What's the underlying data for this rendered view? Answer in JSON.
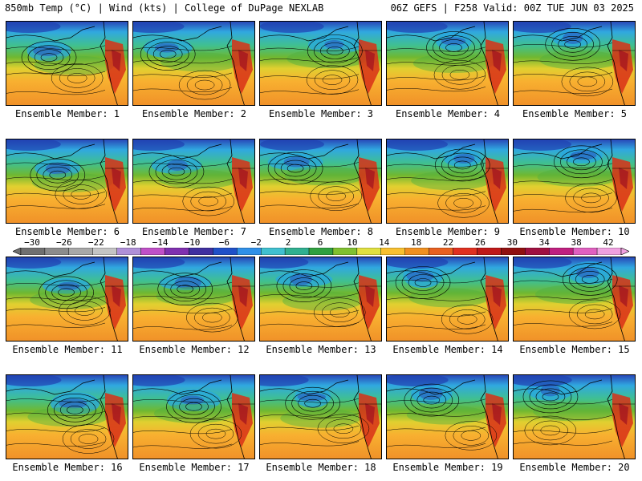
{
  "header": {
    "left": "850mb Temp (°C) | Wind (kts) | College of DuPage NEXLAB",
    "right": "06Z GEFS | F258 Valid: 00Z TUE JUN 03 2025"
  },
  "panels": [
    {
      "label": "Ensemble Member: 1"
    },
    {
      "label": "Ensemble Member: 2"
    },
    {
      "label": "Ensemble Member: 3"
    },
    {
      "label": "Ensemble Member: 4"
    },
    {
      "label": "Ensemble Member: 5"
    },
    {
      "label": "Ensemble Member: 6"
    },
    {
      "label": "Ensemble Member: 7"
    },
    {
      "label": "Ensemble Member: 8"
    },
    {
      "label": "Ensemble Member: 9"
    },
    {
      "label": "Ensemble Member: 10"
    },
    {
      "label": "Ensemble Member: 11"
    },
    {
      "label": "Ensemble Member: 12"
    },
    {
      "label": "Ensemble Member: 13"
    },
    {
      "label": "Ensemble Member: 14"
    },
    {
      "label": "Ensemble Member: 15"
    },
    {
      "label": "Ensemble Member: 16"
    },
    {
      "label": "Ensemble Member: 17"
    },
    {
      "label": "Ensemble Member: 18"
    },
    {
      "label": "Ensemble Member: 19"
    },
    {
      "label": "Ensemble Member: 20"
    }
  ],
  "legend": {
    "ticks": [
      "−30",
      "−26",
      "−22",
      "−18",
      "−14",
      "−10",
      "−6",
      "−2",
      "2",
      "6",
      "10",
      "14",
      "18",
      "22",
      "26",
      "30",
      "34",
      "38",
      "42"
    ],
    "colors": [
      "#707070",
      "#8c8c8c",
      "#a8a8a8",
      "#c4c4c4",
      "#b090d8",
      "#c050c8",
      "#8030b0",
      "#4030a0",
      "#2050c8",
      "#3090e8",
      "#40c0d0",
      "#30b090",
      "#30a040",
      "#80c030",
      "#e0e040",
      "#f8c030",
      "#f09020",
      "#e86020",
      "#e03020",
      "#c01818",
      "#901010",
      "#a01040",
      "#c02080",
      "#e060c0",
      "#f0a0e0"
    ],
    "colorStops": [
      -30,
      42
    ]
  }
}
